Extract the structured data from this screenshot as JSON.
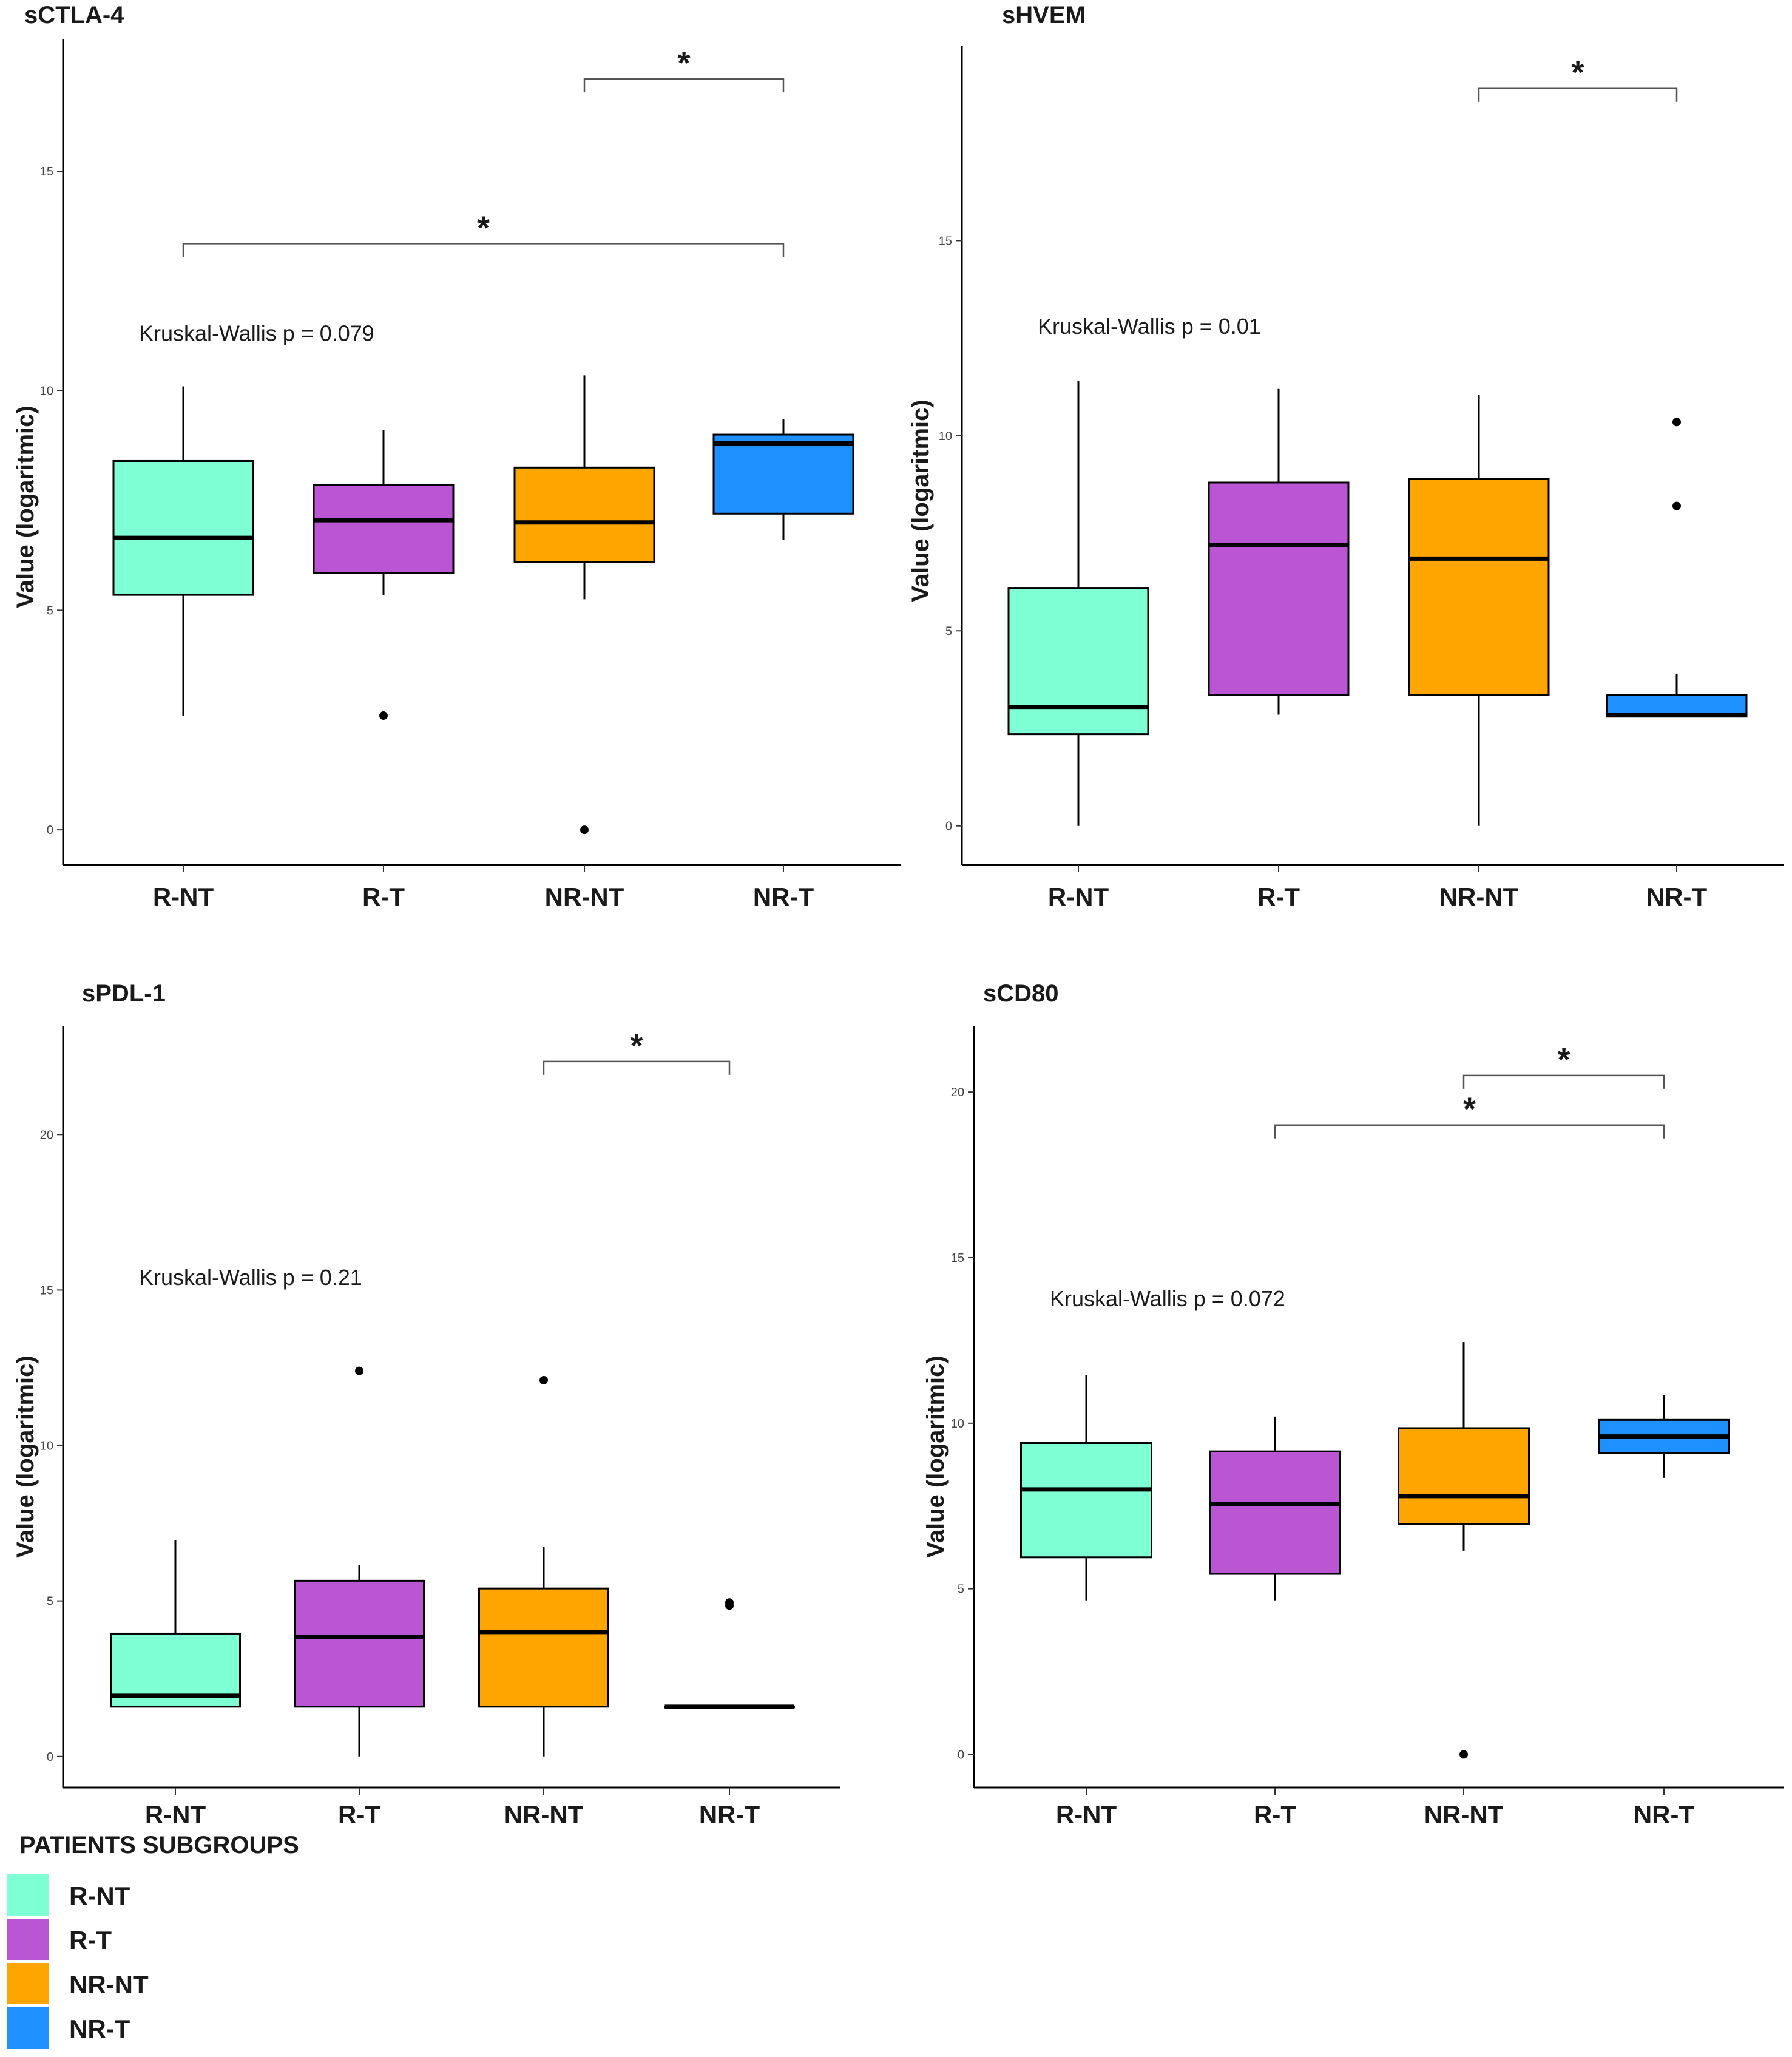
{
  "figure": {
    "legend": {
      "title": "PATIENTS SUBGROUPS",
      "items": [
        {
          "label": "R-NT",
          "color": "#7fffd4"
        },
        {
          "label": "R-T",
          "color": "#ba55d3"
        },
        {
          "label": "NR-NT",
          "color": "#ffa500"
        },
        {
          "label": "NR-T",
          "color": "#1e90ff"
        }
      ]
    }
  },
  "chart_data": [
    {
      "type": "box",
      "title": "sCTLA-4",
      "ylabel": "Value (logaritmic)",
      "ylim": [
        -0.8,
        18
      ],
      "yticks": [
        0,
        5,
        10,
        15
      ],
      "categories": [
        "R-NT",
        "R-T",
        "NR-NT",
        "NR-T"
      ],
      "colors": [
        "#7fffd4",
        "#ba55d3",
        "#ffa500",
        "#1e90ff"
      ],
      "boxes": [
        {
          "min": 2.6,
          "q1": 5.35,
          "median": 6.65,
          "q3": 8.4,
          "max": 10.1,
          "outliers": []
        },
        {
          "min": 5.35,
          "q1": 5.85,
          "median": 7.05,
          "q3": 7.85,
          "max": 9.1,
          "outliers": [
            2.6
          ]
        },
        {
          "min": 5.25,
          "q1": 6.1,
          "median": 7.0,
          "q3": 8.25,
          "max": 10.35,
          "outliers": [
            0
          ]
        },
        {
          "min": 6.6,
          "q1": 7.2,
          "median": 8.8,
          "q3": 9.0,
          "max": 9.35,
          "outliers": []
        }
      ],
      "annotation": "Kruskal-Wallis p = 0.079",
      "annotation_y": 11.3,
      "significance": [
        {
          "from": 2,
          "to": 3,
          "y": 17.1,
          "label": "*"
        },
        {
          "from": 0,
          "to": 3,
          "y": 13.35,
          "label": "*"
        }
      ]
    },
    {
      "type": "box",
      "title": "sHVEM",
      "ylabel": "Value (logaritmic)",
      "ylim": [
        -1,
        20
      ],
      "yticks": [
        0,
        5,
        10,
        15
      ],
      "categories": [
        "R-NT",
        "R-T",
        "NR-NT",
        "NR-T"
      ],
      "colors": [
        "#7fffd4",
        "#ba55d3",
        "#ffa500",
        "#1e90ff"
      ],
      "boxes": [
        {
          "min": 0,
          "q1": 2.35,
          "median": 3.05,
          "q3": 6.1,
          "max": 11.4,
          "outliers": []
        },
        {
          "min": 2.85,
          "q1": 3.35,
          "median": 7.2,
          "q3": 8.8,
          "max": 11.2,
          "outliers": []
        },
        {
          "min": 0,
          "q1": 3.35,
          "median": 6.85,
          "q3": 8.9,
          "max": 11.05,
          "outliers": []
        },
        {
          "min": 2.8,
          "q1": 2.8,
          "median": 2.85,
          "q3": 3.35,
          "max": 3.9,
          "outliers": [
            8.2,
            10.35
          ]
        }
      ],
      "annotation": "Kruskal-Wallis p = 0.01",
      "annotation_y": 12.8,
      "significance": [
        {
          "from": 2,
          "to": 3,
          "y": 18.9,
          "label": "*"
        }
      ]
    },
    {
      "type": "box",
      "title": "sPDL-1",
      "ylabel": "Value (logaritmic)",
      "ylim": [
        -1,
        23.5
      ],
      "yticks": [
        0,
        5,
        10,
        15,
        20
      ],
      "categories": [
        "R-NT",
        "R-T",
        "NR-NT",
        "NR-T"
      ],
      "colors": [
        "#7fffd4",
        "#ba55d3",
        "#ffa500",
        "#1e90ff"
      ],
      "boxes": [
        {
          "min": 1.6,
          "q1": 1.6,
          "median": 1.95,
          "q3": 3.95,
          "max": 6.95,
          "outliers": []
        },
        {
          "min": 0,
          "q1": 1.6,
          "median": 3.85,
          "q3": 5.65,
          "max": 6.15,
          "outliers": [
            12.4
          ]
        },
        {
          "min": 0,
          "q1": 1.6,
          "median": 4.0,
          "q3": 5.4,
          "max": 6.75,
          "outliers": [
            12.1
          ]
        },
        {
          "min": 1.6,
          "q1": 1.6,
          "median": 1.6,
          "q3": 1.6,
          "max": 1.6,
          "outliers": [
            4.85,
            4.95
          ]
        }
      ],
      "annotation": "Kruskal-Wallis p = 0.21",
      "annotation_y": 15.4,
      "significance": [
        {
          "from": 2,
          "to": 3,
          "y": 22.35,
          "label": "*"
        }
      ]
    },
    {
      "type": "box",
      "title": "sCD80",
      "ylabel": "Value (logaritmic)",
      "ylim": [
        -1,
        22
      ],
      "yticks": [
        0,
        5,
        10,
        15,
        20
      ],
      "categories": [
        "R-NT",
        "R-T",
        "NR-NT",
        "NR-T"
      ],
      "colors": [
        "#7fffd4",
        "#ba55d3",
        "#ffa500",
        "#1e90ff"
      ],
      "boxes": [
        {
          "min": 4.65,
          "q1": 5.95,
          "median": 8.0,
          "q3": 9.4,
          "max": 11.45,
          "outliers": []
        },
        {
          "min": 4.65,
          "q1": 5.45,
          "median": 7.55,
          "q3": 9.15,
          "max": 10.2,
          "outliers": []
        },
        {
          "min": 6.15,
          "q1": 6.95,
          "median": 7.8,
          "q3": 9.85,
          "max": 12.45,
          "outliers": [
            0
          ]
        },
        {
          "min": 8.35,
          "q1": 9.1,
          "median": 9.6,
          "q3": 10.1,
          "max": 10.85,
          "outliers": []
        }
      ],
      "annotation": "Kruskal-Wallis p = 0.072",
      "annotation_y": 13.75,
      "significance": [
        {
          "from": 2,
          "to": 3,
          "y": 20.5,
          "label": "*"
        },
        {
          "from": 1,
          "to": 3,
          "y": 19.0,
          "label": "*"
        }
      ]
    }
  ]
}
